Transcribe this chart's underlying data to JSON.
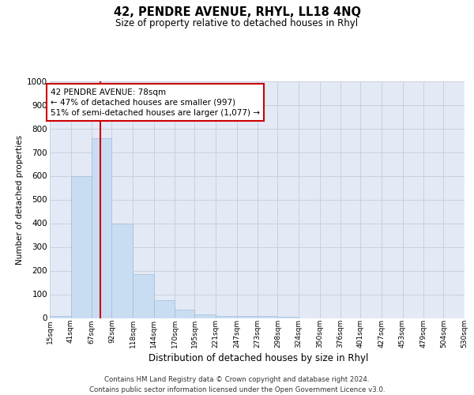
{
  "title": "42, PENDRE AVENUE, RHYL, LL18 4NQ",
  "subtitle": "Size of property relative to detached houses in Rhyl",
  "xlabel": "Distribution of detached houses by size in Rhyl",
  "ylabel": "Number of detached properties",
  "footer_line1": "Contains HM Land Registry data © Crown copyright and database right 2024.",
  "footer_line2": "Contains public sector information licensed under the Open Government Licence v3.0.",
  "bin_edges": [
    15,
    41,
    67,
    92,
    118,
    144,
    170,
    195,
    221,
    247,
    273,
    298,
    324,
    350,
    376,
    401,
    427,
    453,
    479,
    504,
    530
  ],
  "bar_heights": [
    10,
    600,
    760,
    400,
    185,
    75,
    35,
    15,
    10,
    10,
    10,
    5,
    0,
    0,
    0,
    0,
    0,
    0,
    0,
    0
  ],
  "bar_color": "#c9ddf2",
  "bar_edge_color": "#a0bcd8",
  "grid_color": "#c8d0e0",
  "plot_bg_color": "#e4eaf5",
  "red_line_x": 78,
  "red_line_color": "#cc0000",
  "annotation_line1": "42 PENDRE AVENUE: 78sqm",
  "annotation_line2": "← 47% of detached houses are smaller (997)",
  "annotation_line3": "51% of semi-detached houses are larger (1,077) →",
  "annotation_box_fc": "white",
  "annotation_box_ec": "#cc0000",
  "ylim": [
    0,
    1000
  ],
  "yticks": [
    0,
    100,
    200,
    300,
    400,
    500,
    600,
    700,
    800,
    900,
    1000
  ]
}
